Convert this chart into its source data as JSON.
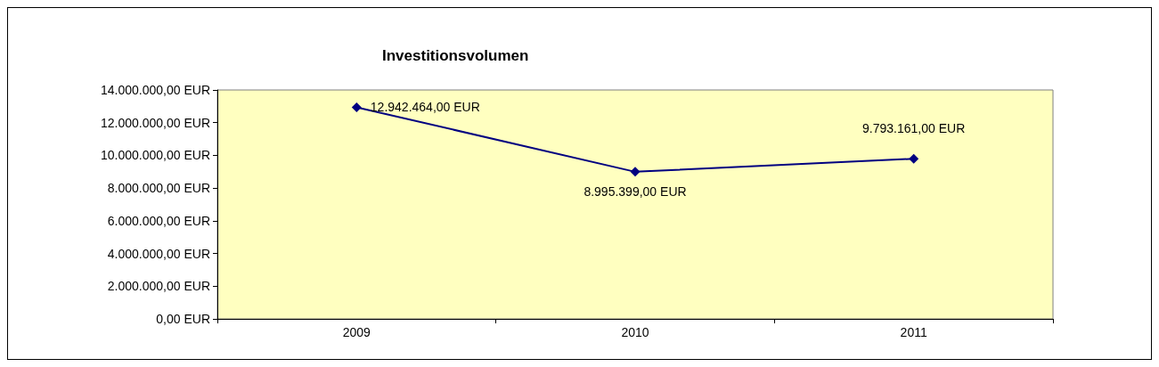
{
  "chart_data": {
    "type": "line",
    "title": "Investitionsvolumen",
    "categories": [
      "2009",
      "2010",
      "2011"
    ],
    "series": [
      {
        "color": "#000080",
        "values": [
          12942464,
          8995399,
          9793161
        ],
        "value_labels": [
          "12.942.464,00 EUR",
          "8.995.399,00 EUR",
          "9.793.161,00 EUR"
        ]
      }
    ],
    "ylim": [
      0,
      14000000
    ],
    "yticks": [
      {
        "value": 0,
        "label": "0,00 EUR"
      },
      {
        "value": 2000000,
        "label": "2.000.000,00 EUR"
      },
      {
        "value": 4000000,
        "label": "4.000.000,00 EUR"
      },
      {
        "value": 6000000,
        "label": "6.000.000,00 EUR"
      },
      {
        "value": 8000000,
        "label": "8.000.000,00 EUR"
      },
      {
        "value": 10000000,
        "label": "10.000.000,00 EUR"
      },
      {
        "value": 12000000,
        "label": "12.000.000,00 EUR"
      },
      {
        "value": 14000000,
        "label": "14.000.000,00 EUR"
      }
    ],
    "grid": false,
    "marker": "diamond",
    "line_style": "solid"
  }
}
